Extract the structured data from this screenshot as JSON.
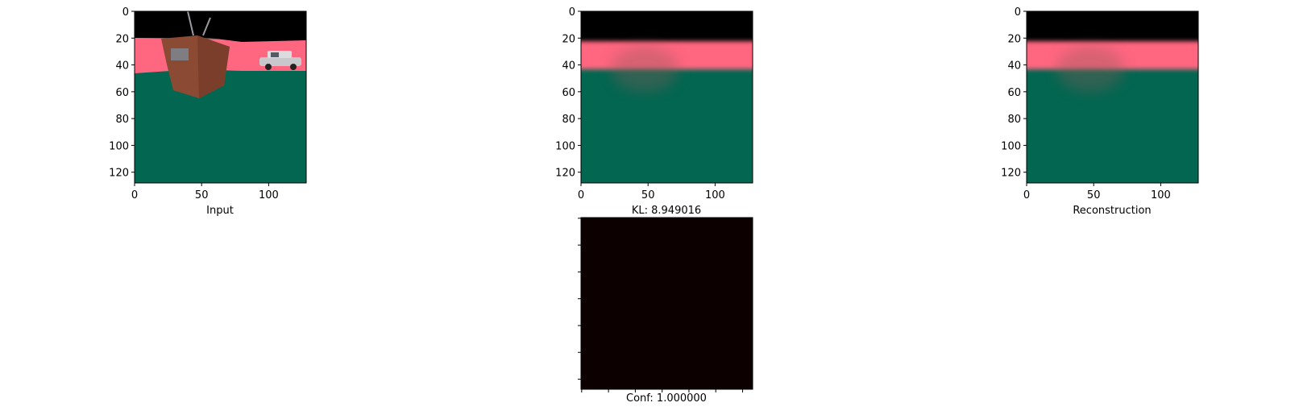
{
  "chart_data": [
    {
      "type": "image",
      "caption": "Input",
      "xticks": [
        0,
        50,
        100
      ],
      "yticks": [
        0,
        20,
        40,
        60,
        80,
        100,
        120
      ],
      "xlim": [
        0,
        128
      ],
      "ylim": [
        128,
        0
      ],
      "colors": {
        "sky": "#000000",
        "band": "#ff6680",
        "floor": "#026650",
        "object": "#8a4a33"
      }
    },
    {
      "type": "image",
      "caption": "KL: 8.949016",
      "xticks": [
        0,
        50,
        100
      ],
      "yticks": [
        0,
        20,
        40,
        60,
        80,
        100,
        120
      ],
      "xlim": [
        0,
        128
      ],
      "ylim": [
        128,
        0
      ],
      "colors": {
        "sky": "#000000",
        "band": "#ff6680",
        "floor": "#026650"
      }
    },
    {
      "type": "image",
      "caption": "Reconstruction",
      "xticks": [
        0,
        50,
        100
      ],
      "yticks": [
        0,
        20,
        40,
        60,
        80,
        100,
        120
      ],
      "xlim": [
        0,
        128
      ],
      "ylim": [
        128,
        0
      ],
      "colors": {
        "sky": "#000000",
        "band": "#ff6680",
        "floor": "#026650"
      }
    },
    {
      "type": "heatmap",
      "caption": "Conf: 1.000000",
      "value": 1.0,
      "tick_labels_visible": false,
      "colors": {
        "fill": "#0d0000"
      }
    }
  ]
}
